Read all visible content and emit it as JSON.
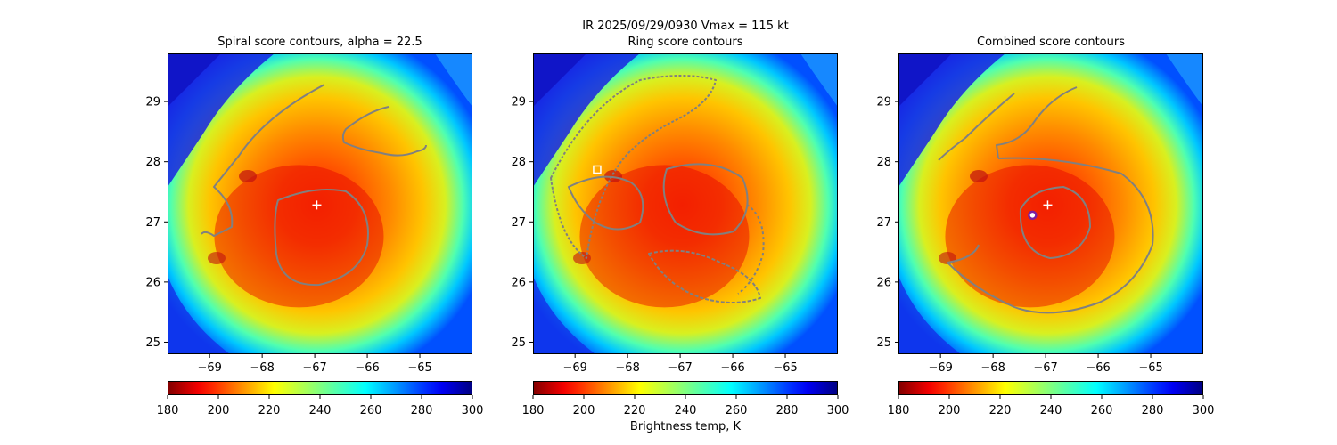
{
  "suptitle": "IR  2025/09/29/0930    Vmax = 115 kt",
  "colorbar_label": "Brightness temp, K",
  "chart_data": [
    {
      "type": "heatmap",
      "title": "Spiral score contours, alpha = 22.5",
      "colormap": "jet_r",
      "xlim": [
        -69.8,
        -64.0
      ],
      "ylim": [
        24.8,
        29.8
      ],
      "xticks": [
        -69,
        -68,
        -67,
        -66,
        -65
      ],
      "yticks": [
        25,
        26,
        27,
        28,
        29
      ],
      "cbar_range": [
        180,
        300
      ],
      "cbar_ticks": [
        180,
        200,
        220,
        240,
        260,
        280,
        300
      ],
      "center_marker": {
        "type": "plus",
        "color": "#ffffff",
        "lon": -66.96,
        "lat": 27.28
      },
      "contour_color": "#808080"
    },
    {
      "type": "heatmap",
      "title": "Ring score contours",
      "colormap": "jet_r",
      "xlim": [
        -69.8,
        -64.0
      ],
      "ylim": [
        24.8,
        29.8
      ],
      "xticks": [
        -69,
        -68,
        -67,
        -66,
        -65
      ],
      "yticks": [
        25,
        26,
        27,
        28,
        29
      ],
      "cbar_range": [
        180,
        300
      ],
      "cbar_ticks": [
        180,
        200,
        220,
        240,
        260,
        280,
        300
      ],
      "center_marker": {
        "type": "square",
        "color": "#ffffff",
        "lon": -68.58,
        "lat": 27.87
      },
      "contour_color": "#808080"
    },
    {
      "type": "heatmap",
      "title": "Combined score contours",
      "colormap": "jet_r",
      "xlim": [
        -69.8,
        -64.0
      ],
      "ylim": [
        24.8,
        29.8
      ],
      "xticks": [
        -69,
        -68,
        -67,
        -66,
        -65
      ],
      "yticks": [
        25,
        26,
        27,
        28,
        29
      ],
      "cbar_range": [
        180,
        300
      ],
      "cbar_ticks": [
        180,
        200,
        220,
        240,
        260,
        280,
        300
      ],
      "center_marker": {
        "type": "plus",
        "color": "#ffffff",
        "lon": -66.96,
        "lat": 27.28
      },
      "extra_marker": {
        "type": "circle",
        "color": "#7a1fa2",
        "lon": -67.25,
        "lat": 27.11
      },
      "contour_color": "#808080"
    }
  ]
}
